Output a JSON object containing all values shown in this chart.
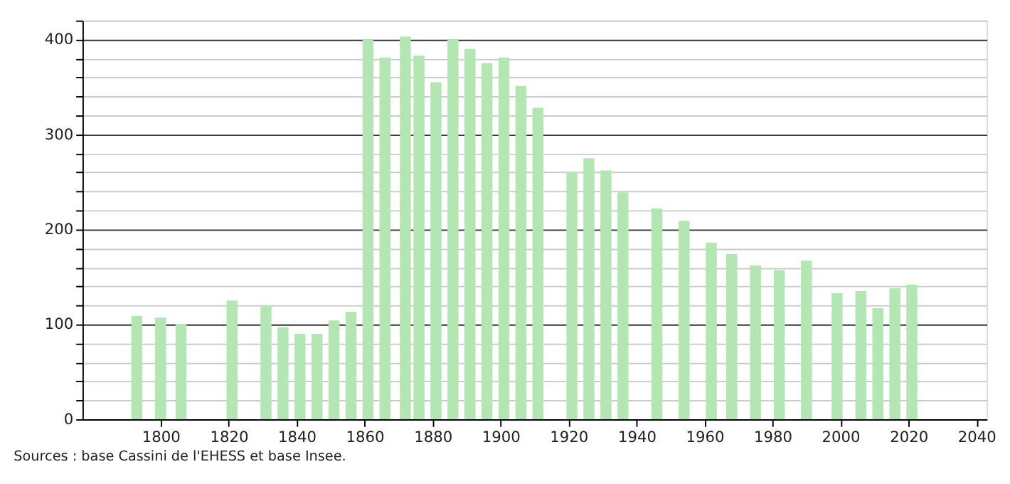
{
  "chart_data": {
    "type": "bar",
    "x": [
      1793,
      1800,
      1806,
      1821,
      1831,
      1836,
      1841,
      1846,
      1851,
      1856,
      1861,
      1866,
      1872,
      1876,
      1881,
      1886,
      1891,
      1896,
      1901,
      1906,
      1911,
      1921,
      1926,
      1931,
      1936,
      1946,
      1954,
      1962,
      1968,
      1975,
      1982,
      1990,
      1999,
      2006,
      2011,
      2016,
      2021
    ],
    "values": [
      109,
      107,
      100,
      125,
      119,
      97,
      90,
      90,
      104,
      113,
      400,
      381,
      403,
      383,
      355,
      400,
      390,
      375,
      381,
      351,
      328,
      261,
      275,
      262,
      239,
      222,
      209,
      186,
      174,
      162,
      157,
      167,
      133,
      135,
      117,
      138,
      142
    ],
    "color": "#b3e6b3",
    "xlim": [
      1777,
      2043
    ],
    "xticks": [
      1800,
      1820,
      1840,
      1860,
      1880,
      1900,
      1920,
      1940,
      1960,
      1980,
      2000,
      2020,
      2040
    ],
    "ylim": [
      0,
      420
    ],
    "yticks": [
      0,
      {
        "value": 20,
        "label": null
      },
      {
        "value": 40,
        "label": null
      },
      {
        "value": 60,
        "label": null
      },
      {
        "value": 80,
        "label": null
      },
      100,
      {
        "value": 120,
        "label": null
      },
      {
        "value": 140,
        "label": null
      },
      {
        "value": 160,
        "label": null
      },
      {
        "value": 180,
        "label": null
      },
      200,
      {
        "value": 220,
        "label": null
      },
      {
        "value": 240,
        "label": null
      },
      {
        "value": 260,
        "label": null
      },
      {
        "value": 280,
        "label": null
      },
      300,
      {
        "value": 320,
        "label": null
      },
      {
        "value": 340,
        "label": null
      },
      {
        "value": 360,
        "label": null
      },
      {
        "value": 380,
        "label": null
      },
      400,
      {
        "value": 420,
        "label": null
      }
    ],
    "grid": "y",
    "annotations": [
      "Sources : base Cassini de l'EHESS et base Insee."
    ]
  }
}
